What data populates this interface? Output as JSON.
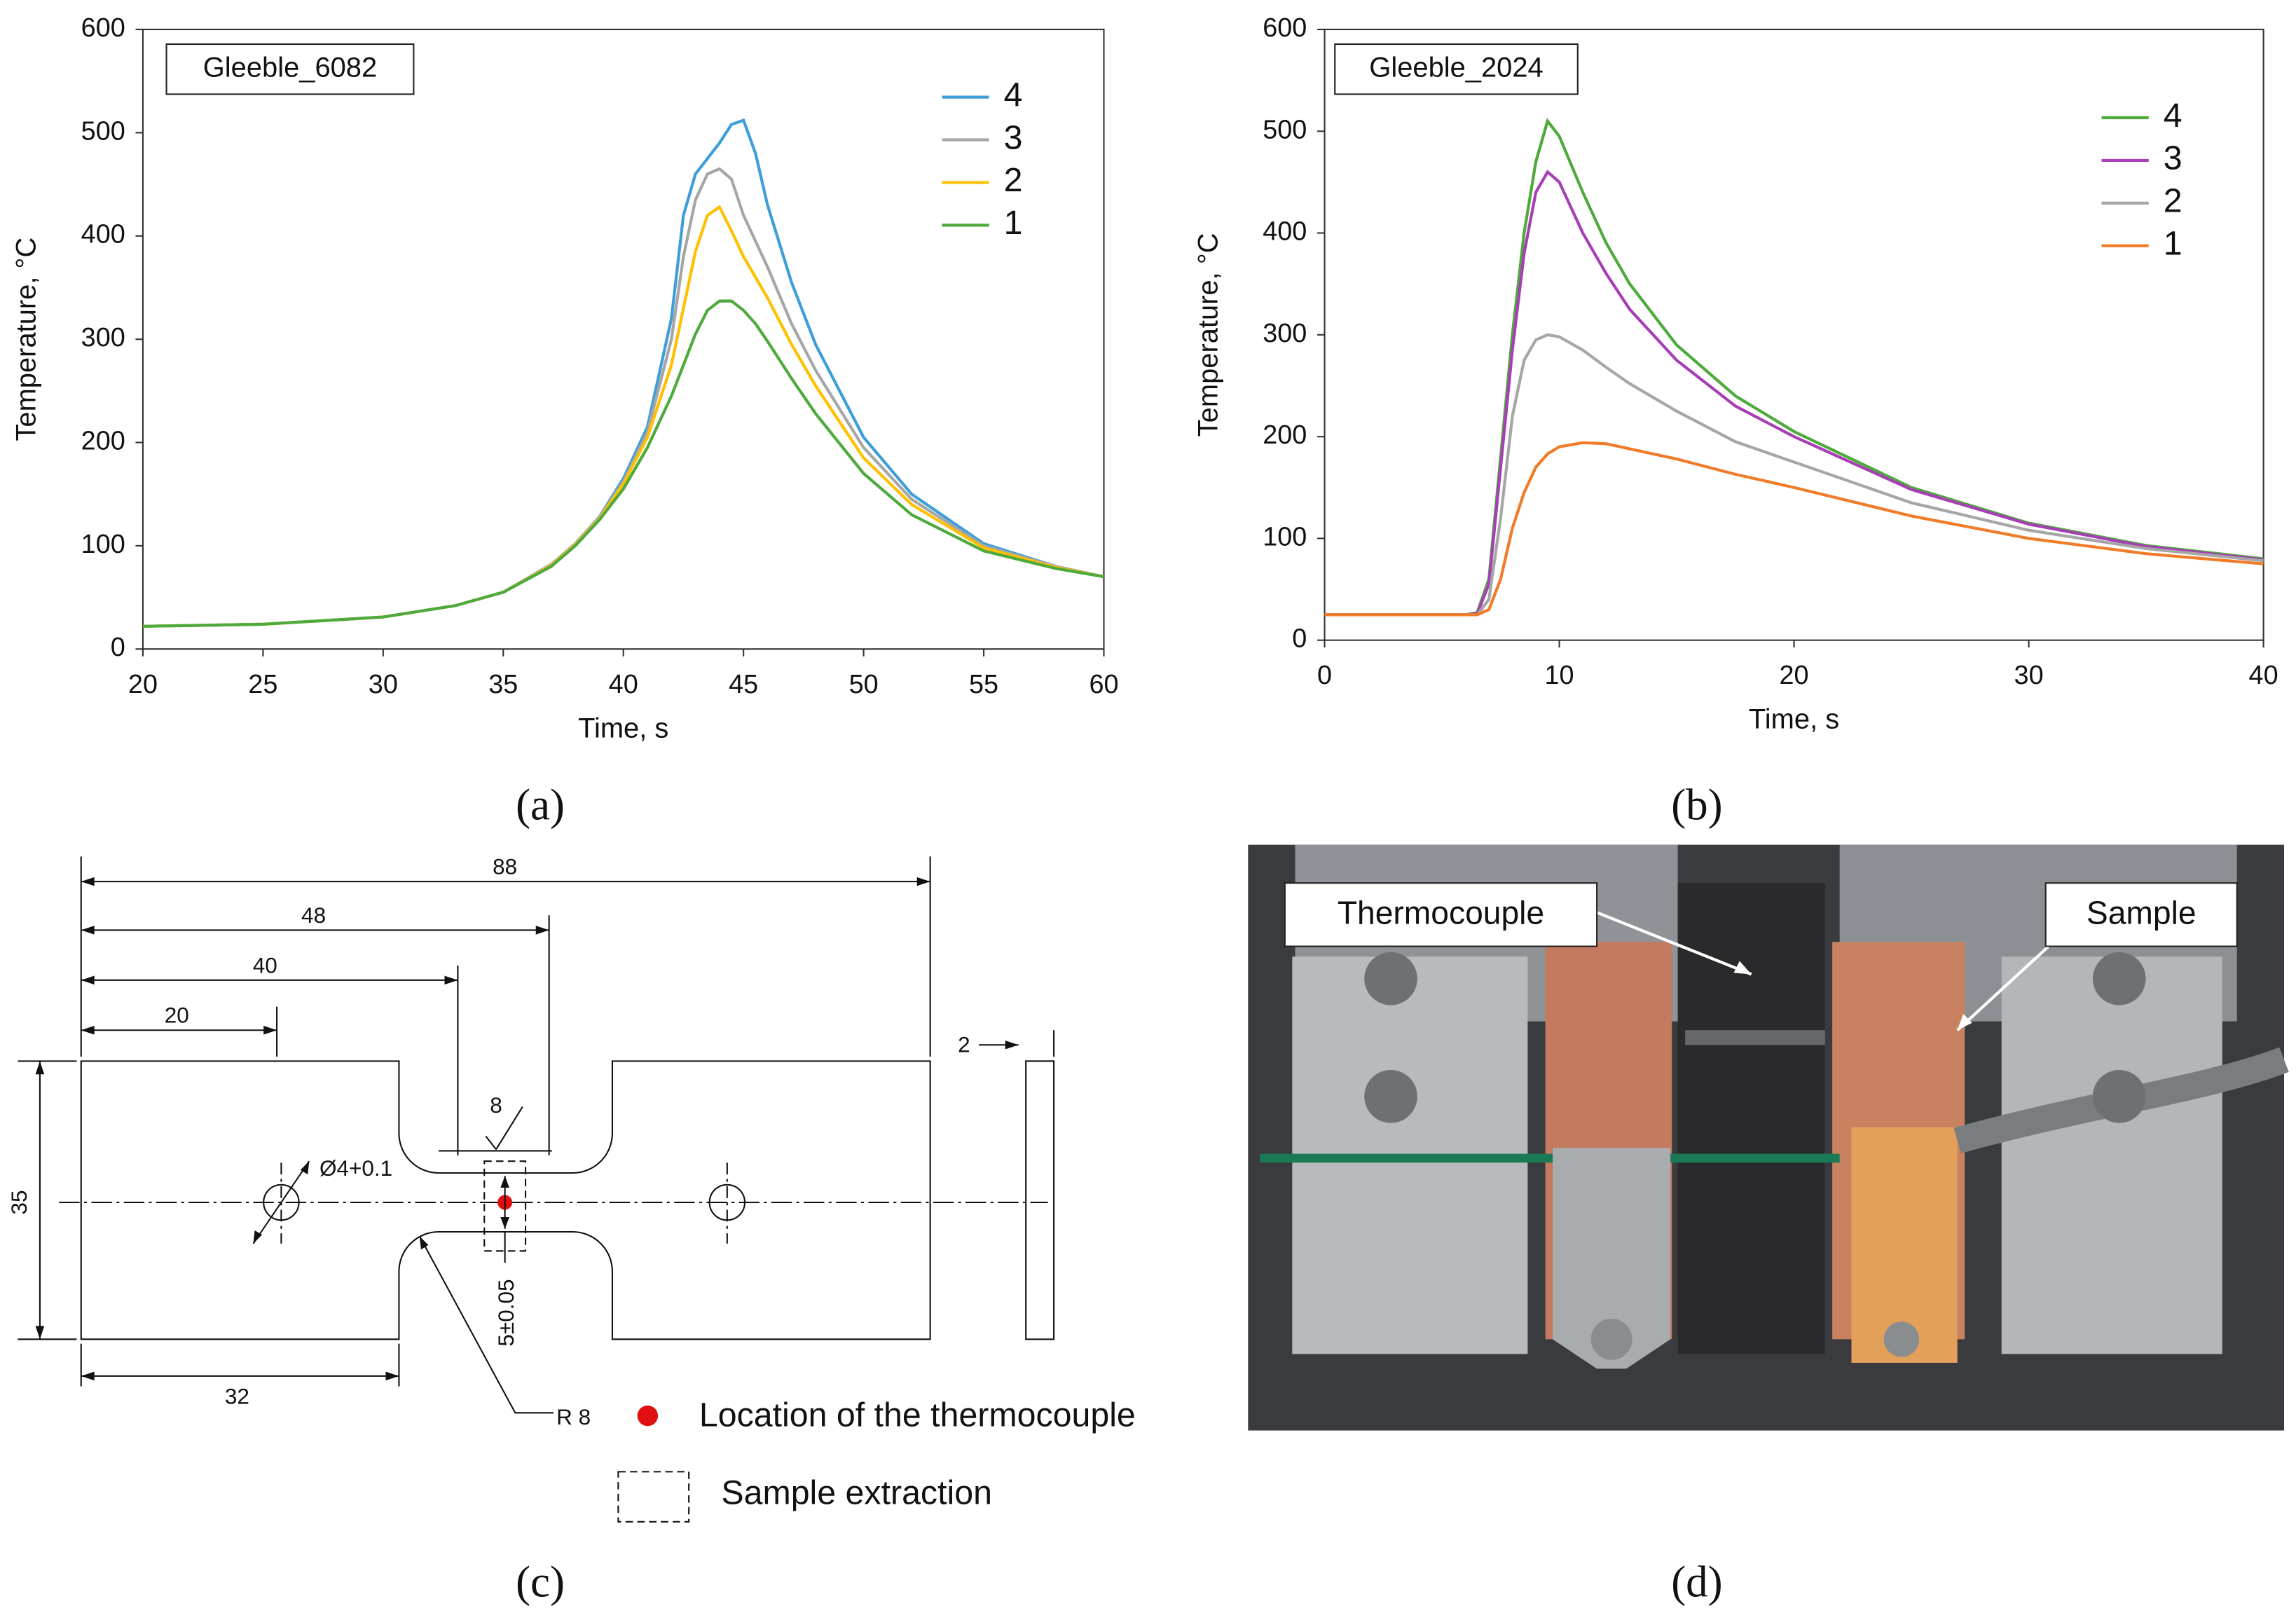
{
  "chart_data": [
    {
      "type": "line",
      "annotation": "Gleeble_6082",
      "xlabel": "Time, s",
      "ylabel": "Temperature, °C",
      "x": [
        20,
        25,
        30,
        33,
        35,
        37,
        38,
        39,
        40,
        41,
        42,
        42.5,
        43,
        43.5,
        44,
        44.5,
        45,
        45.5,
        46,
        47,
        48,
        50,
        52,
        55,
        58,
        60
      ],
      "xlim": [
        20,
        60
      ],
      "xticks": [
        20,
        25,
        30,
        35,
        40,
        45,
        50,
        55,
        60
      ],
      "ylim": [
        0,
        600
      ],
      "yticks": [
        0,
        100,
        200,
        300,
        400,
        500,
        600
      ],
      "legend": "upper right",
      "series": [
        {
          "name": "4",
          "color": "#3d9ed8",
          "values": [
            22,
            24,
            31,
            42,
            55,
            82,
            102,
            128,
            165,
            215,
            320,
            420,
            460,
            475,
            490,
            508,
            512,
            480,
            430,
            355,
            295,
            205,
            150,
            102,
            80,
            70
          ]
        },
        {
          "name": "3",
          "color": "#a6a6a6",
          "values": [
            22,
            24,
            31,
            42,
            55,
            82,
            102,
            128,
            162,
            210,
            300,
            380,
            435,
            460,
            465,
            455,
            420,
            395,
            370,
            315,
            270,
            195,
            145,
            100,
            80,
            70
          ]
        },
        {
          "name": "2",
          "color": "#ffc000",
          "values": [
            22,
            24,
            31,
            42,
            55,
            81,
            101,
            126,
            160,
            205,
            275,
            330,
            385,
            420,
            428,
            405,
            380,
            360,
            340,
            295,
            255,
            185,
            140,
            98,
            79,
            70
          ]
        },
        {
          "name": "1",
          "color": "#4eaa3c",
          "values": [
            22,
            24,
            31,
            42,
            55,
            80,
            100,
            125,
            155,
            195,
            245,
            275,
            305,
            328,
            337,
            337,
            328,
            315,
            298,
            262,
            228,
            170,
            130,
            95,
            78,
            70
          ]
        }
      ]
    },
    {
      "type": "line",
      "annotation": "Gleeble_2024",
      "xlabel": "Time, s",
      "ylabel": "Temperature, °C",
      "x": [
        0,
        6,
        6.5,
        7,
        7.5,
        8,
        8.5,
        9,
        9.5,
        10,
        11,
        12,
        13,
        15,
        17.5,
        20,
        25,
        30,
        35,
        40
      ],
      "xlim": [
        0,
        40
      ],
      "xticks": [
        0,
        10,
        20,
        30,
        40
      ],
      "ylim": [
        0,
        600
      ],
      "yticks": [
        0,
        100,
        200,
        300,
        400,
        500,
        600
      ],
      "legend": "upper right",
      "series": [
        {
          "name": "4",
          "color": "#4eaa3c",
          "values": [
            25,
            25,
            27,
            60,
            180,
            300,
            400,
            470,
            510,
            495,
            440,
            390,
            350,
            290,
            240,
            205,
            150,
            115,
            93,
            80
          ]
        },
        {
          "name": "3",
          "color": "#a63fb5",
          "values": [
            25,
            25,
            26,
            55,
            170,
            285,
            380,
            440,
            460,
            450,
            400,
            360,
            325,
            275,
            230,
            200,
            148,
            114,
            92,
            79
          ]
        },
        {
          "name": "2",
          "color": "#a6a6a6",
          "values": [
            25,
            25,
            25,
            40,
            120,
            220,
            275,
            295,
            300,
            298,
            285,
            268,
            252,
            225,
            195,
            175,
            135,
            108,
            90,
            78
          ]
        },
        {
          "name": "1",
          "color": "#f07c2a",
          "values": [
            25,
            25,
            25,
            30,
            60,
            110,
            145,
            170,
            183,
            190,
            194,
            193,
            188,
            178,
            163,
            150,
            122,
            100,
            85,
            75
          ]
        }
      ]
    }
  ],
  "panels": [
    "(a)",
    "(b)",
    "(c)",
    "(d)"
  ],
  "drawing": {
    "length": "88",
    "to_neck_end": "48",
    "to_center": "40",
    "to_hole": "20",
    "thickness": "2",
    "width": "35",
    "roughness": "8",
    "hole": "Ø4+0.1",
    "neck": "5±0.05",
    "shoulder": "32",
    "radius": "R 8",
    "legend_dot": "Location of the thermocouple",
    "legend_box": "Sample extraction"
  },
  "photo": {
    "labels": [
      "Thermocouple",
      "Sample"
    ]
  }
}
